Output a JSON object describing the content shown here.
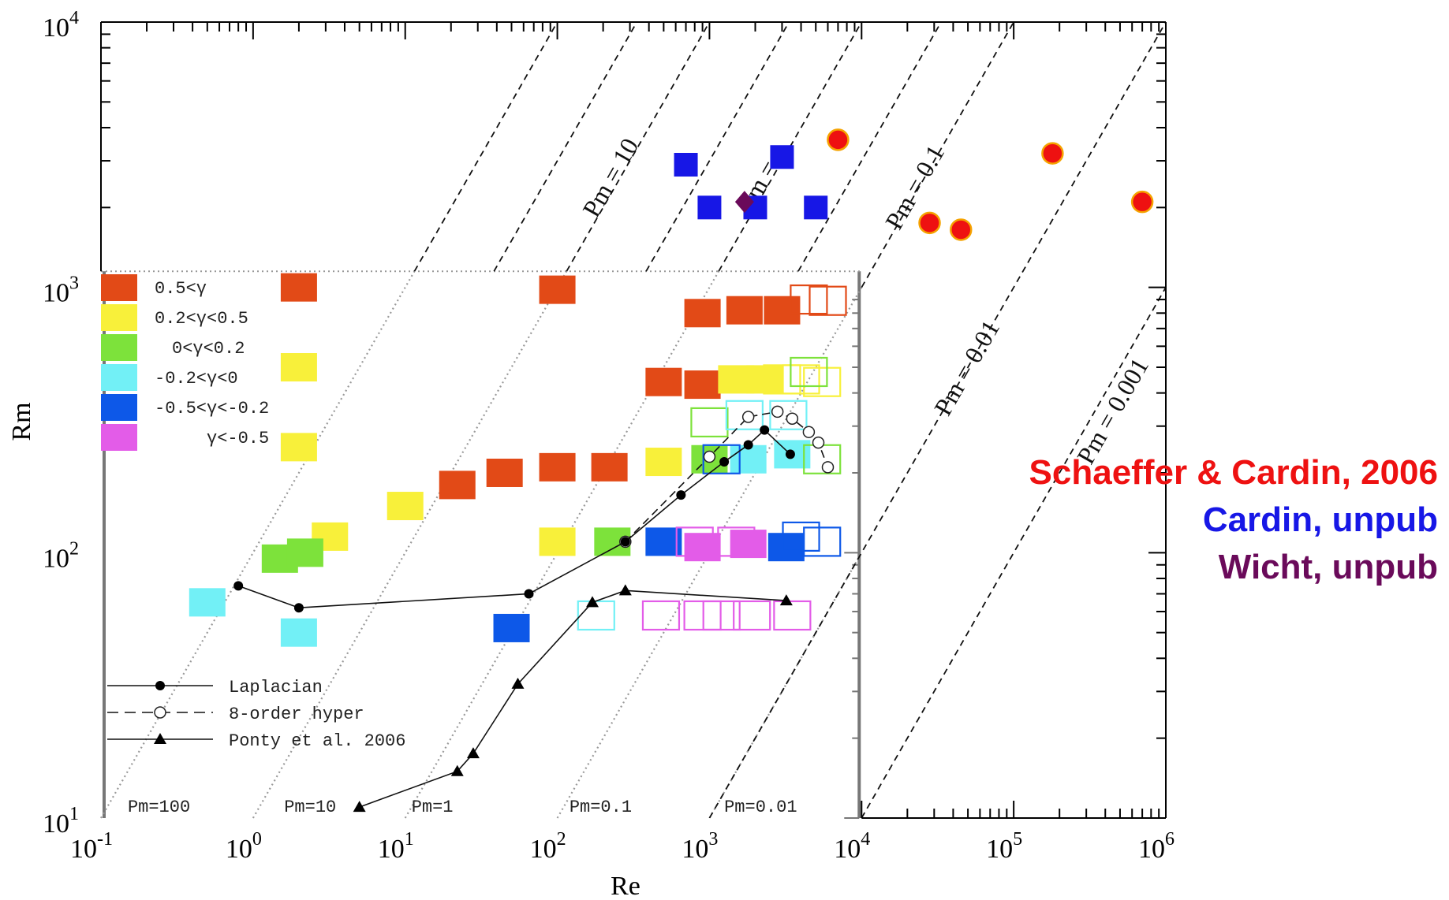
{
  "chart_data": {
    "type": "scatter",
    "xlabel": "Re",
    "ylabel": "Rm",
    "xscale": "log",
    "yscale": "log",
    "xlim": [
      0.1,
      1000000
    ],
    "ylim": [
      10,
      10000
    ],
    "x_ticks": [
      {
        "base": "10",
        "exp": "-1"
      },
      {
        "base": "10",
        "exp": "0"
      },
      {
        "base": "10",
        "exp": "1"
      },
      {
        "base": "10",
        "exp": "2"
      },
      {
        "base": "10",
        "exp": "3"
      },
      {
        "base": "10",
        "exp": "4"
      },
      {
        "base": "10",
        "exp": "5"
      },
      {
        "base": "10",
        "exp": "6"
      }
    ],
    "y_ticks": [
      {
        "base": "10",
        "exp": "1"
      },
      {
        "base": "10",
        "exp": "2"
      },
      {
        "base": "10",
        "exp": "3"
      },
      {
        "base": "10",
        "exp": "4"
      }
    ],
    "pm_lines_main": [
      {
        "pm": 100
      },
      {
        "pm": 30
      },
      {
        "pm": 10,
        "label": "Pm = 10"
      },
      {
        "pm": 3
      },
      {
        "pm": 1,
        "label": "Pm = 1"
      },
      {
        "pm": 0.3
      },
      {
        "pm": 0.1,
        "label": "Pm = 0.1"
      },
      {
        "pm": 0.01,
        "label": "Pm = 0.01"
      },
      {
        "pm": 0.001,
        "label": "Pm = 0.001"
      }
    ],
    "pm_labels_inset": [
      "Pm=100",
      "Pm=10",
      "Pm=1",
      "Pm=0.1",
      "Pm=0.01"
    ],
    "inset_legend": [
      {
        "label": "0.5<γ",
        "color": "#e24a17"
      },
      {
        "label": "0.2<γ<0.5",
        "color": "#f8f03a"
      },
      {
        "label": "0<γ<0.2",
        "color": "#7de23b"
      },
      {
        "label": "-0.2<γ<0",
        "color": "#72f0f6"
      },
      {
        "label": "-0.5<γ<-0.2",
        "color": "#0d58e8"
      },
      {
        "label": "γ<-0.5",
        "color": "#e35ce8"
      }
    ],
    "line_legend": [
      "Laplacian",
      "8-order hyper",
      "Ponty et al. 2006"
    ],
    "series": [
      {
        "name": "Schaeffer & Cardin, 2006",
        "color": "#ee1111",
        "marker": "circle",
        "points": [
          [
            7000,
            3600
          ],
          [
            28000,
            1750
          ],
          [
            45000,
            1650
          ],
          [
            180000,
            3200
          ],
          [
            700000,
            2100
          ]
        ]
      },
      {
        "name": "Cardin, unpub",
        "color": "#1717e6",
        "marker": "square",
        "points": [
          [
            700,
            2900
          ],
          [
            1000,
            2000
          ],
          [
            2000,
            2000
          ],
          [
            3000,
            3100
          ],
          [
            5000,
            2000
          ]
        ]
      },
      {
        "name": "Wicht, unpub",
        "color": "#6a0a5a",
        "marker": "diamond",
        "points": [
          [
            1700,
            2100
          ]
        ]
      },
      {
        "name": "Laplacian",
        "marker": "line-circle",
        "points": [
          [
            0.8,
            75
          ],
          [
            2,
            62
          ],
          [
            65,
            70
          ],
          [
            280,
            110
          ],
          [
            650,
            165
          ],
          [
            1250,
            220
          ],
          [
            1800,
            255
          ],
          [
            2300,
            290
          ],
          [
            3400,
            235
          ]
        ]
      },
      {
        "name": "8-order hyper",
        "marker": "dashed-circle",
        "points": [
          [
            280,
            110
          ],
          [
            1000,
            230
          ],
          [
            1800,
            325
          ],
          [
            2800,
            340
          ],
          [
            3500,
            320
          ],
          [
            4500,
            285
          ],
          [
            5200,
            260
          ],
          [
            6000,
            210
          ]
        ]
      },
      {
        "name": "Ponty et al. 2006",
        "marker": "line-triangle",
        "points": [
          [
            5,
            11
          ],
          [
            22,
            15
          ],
          [
            28,
            17.5
          ],
          [
            55,
            32
          ],
          [
            170,
            65
          ],
          [
            280,
            72
          ],
          [
            3200,
            66
          ]
        ]
      }
    ],
    "inset_squares_filled": [
      {
        "x": 2,
        "y": 1000,
        "cls": 0
      },
      {
        "x": 100,
        "y": 980,
        "cls": 0
      },
      {
        "x": 900,
        "y": 800,
        "cls": 0
      },
      {
        "x": 1700,
        "y": 820,
        "cls": 0
      },
      {
        "x": 3000,
        "y": 820,
        "cls": 0
      },
      {
        "x": 500,
        "y": 440,
        "cls": 0
      },
      {
        "x": 900,
        "y": 430,
        "cls": 0
      },
      {
        "x": 22,
        "y": 180,
        "cls": 0
      },
      {
        "x": 45,
        "y": 200,
        "cls": 0
      },
      {
        "x": 100,
        "y": 210,
        "cls": 0
      },
      {
        "x": 220,
        "y": 210,
        "cls": 0
      },
      {
        "x": 2,
        "y": 500,
        "cls": 1
      },
      {
        "x": 2,
        "y": 250,
        "cls": 1
      },
      {
        "x": 3.2,
        "y": 115,
        "cls": 1
      },
      {
        "x": 10,
        "y": 150,
        "cls": 1
      },
      {
        "x": 100,
        "y": 110,
        "cls": 1
      },
      {
        "x": 500,
        "y": 220,
        "cls": 1
      },
      {
        "x": 1500,
        "y": 450,
        "cls": 1
      },
      {
        "x": 2300,
        "y": 450,
        "cls": 1
      },
      {
        "x": 1.5,
        "y": 95,
        "cls": 2
      },
      {
        "x": 2.2,
        "y": 100,
        "cls": 2
      },
      {
        "x": 230,
        "y": 110,
        "cls": 2
      },
      {
        "x": 1000,
        "y": 225,
        "cls": 2
      },
      {
        "x": 0.5,
        "y": 65,
        "cls": 3
      },
      {
        "x": 2,
        "y": 50,
        "cls": 3
      },
      {
        "x": 1800,
        "y": 225,
        "cls": 3
      },
      {
        "x": 3500,
        "y": 235,
        "cls": 3
      },
      {
        "x": 50,
        "y": 52,
        "cls": 4
      },
      {
        "x": 500,
        "y": 110,
        "cls": 4
      },
      {
        "x": 3200,
        "y": 105,
        "cls": 4
      },
      {
        "x": 900,
        "y": 105,
        "cls": 5
      },
      {
        "x": 1800,
        "y": 108,
        "cls": 5
      }
    ],
    "inset_squares_open": [
      {
        "x": 4500,
        "y": 900,
        "cls": 0
      },
      {
        "x": 6000,
        "y": 890,
        "cls": 0
      },
      {
        "x": 4000,
        "y": 450,
        "cls": 1
      },
      {
        "x": 5500,
        "y": 440,
        "cls": 1
      },
      {
        "x": 3000,
        "y": 450,
        "cls": 1
      },
      {
        "x": 4500,
        "y": 480,
        "cls": 2
      },
      {
        "x": 1000,
        "y": 310,
        "cls": 2
      },
      {
        "x": 5500,
        "y": 225,
        "cls": 2
      },
      {
        "x": 180,
        "y": 58,
        "cls": 3
      },
      {
        "x": 1700,
        "y": 330,
        "cls": 3
      },
      {
        "x": 3300,
        "y": 330,
        "cls": 3
      },
      {
        "x": 4000,
        "y": 115,
        "cls": 4
      },
      {
        "x": 5500,
        "y": 110,
        "cls": 4
      },
      {
        "x": 1200,
        "y": 225,
        "cls": 4
      },
      {
        "x": 480,
        "y": 58,
        "cls": 5
      },
      {
        "x": 900,
        "y": 58,
        "cls": 5
      },
      {
        "x": 1200,
        "y": 58,
        "cls": 5
      },
      {
        "x": 1900,
        "y": 58,
        "cls": 5
      },
      {
        "x": 3500,
        "y": 58,
        "cls": 5
      },
      {
        "x": 800,
        "y": 110,
        "cls": 5
      },
      {
        "x": 1500,
        "y": 110,
        "cls": 5
      }
    ]
  },
  "references": [
    {
      "text": "Schaeffer & Cardin, 2006",
      "color": "#ee1111"
    },
    {
      "text": "Cardin, unpub",
      "color": "#1717e6"
    },
    {
      "text": "Wicht, unpub",
      "color": "#6a0a5a"
    }
  ]
}
